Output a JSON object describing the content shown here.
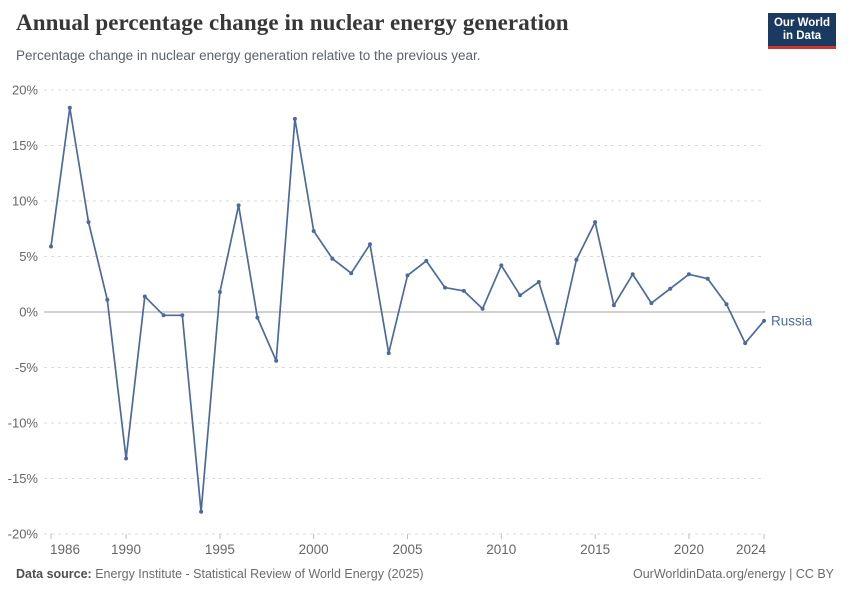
{
  "header": {
    "title": "Annual percentage change in nuclear energy generation",
    "subtitle": "Percentage change in nuclear energy generation relative to the previous year.",
    "logo_line1": "Our World",
    "logo_line2": "in Data"
  },
  "chart_data": {
    "type": "line",
    "title": "Annual percentage change in nuclear energy generation",
    "xlabel": "",
    "ylabel": "",
    "xlim": [
      1986,
      2024
    ],
    "ylim": [
      -20,
      20
    ],
    "x_ticks": [
      1986,
      1990,
      1995,
      2000,
      2005,
      2010,
      2015,
      2020,
      2024
    ],
    "y_ticks": [
      20,
      15,
      10,
      5,
      0,
      -5,
      -10,
      -15,
      -20
    ],
    "y_tick_suffix": "%",
    "grid": "horizontal-dashed",
    "zero_line": true,
    "legend_position": "end-of-line-label",
    "series": [
      {
        "name": "Russia",
        "color": "#4C6A9C",
        "x": [
          1986,
          1987,
          1988,
          1989,
          1990,
          1991,
          1992,
          1993,
          1994,
          1995,
          1996,
          1997,
          1998,
          1999,
          2000,
          2001,
          2002,
          2003,
          2004,
          2005,
          2006,
          2007,
          2008,
          2009,
          2010,
          2011,
          2012,
          2013,
          2014,
          2015,
          2016,
          2017,
          2018,
          2019,
          2020,
          2021,
          2022,
          2023,
          2024
        ],
        "values": [
          5.9,
          18.4,
          8.1,
          1.1,
          -13.2,
          1.4,
          -0.3,
          -0.3,
          -18.0,
          1.8,
          9.6,
          -0.5,
          -4.4,
          17.4,
          7.3,
          4.8,
          3.5,
          6.1,
          -3.7,
          3.3,
          4.6,
          2.2,
          1.9,
          0.3,
          4.2,
          1.5,
          2.7,
          -2.8,
          4.7,
          8.1,
          0.6,
          3.4,
          0.8,
          2.1,
          3.4,
          3.0,
          0.7,
          -2.8,
          -0.8
        ]
      }
    ]
  },
  "colors": {
    "line": "#4C6A9C",
    "grid": "#dadada",
    "zero_line": "#a3a3a3",
    "tick_label": "#666666",
    "logo_bg": "#1a3a62",
    "logo_accent": "#d0342c"
  },
  "footer": {
    "source_label": "Data source:",
    "source_text": " Energy Institute - Statistical Review of World Energy (2025)",
    "credit": "OurWorldinData.org/energy | CC BY"
  }
}
